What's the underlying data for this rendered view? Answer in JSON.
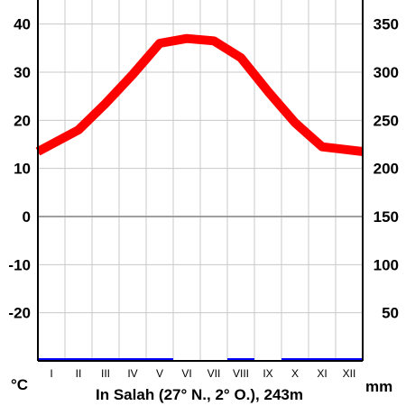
{
  "chart_data": {
    "type": "line",
    "title": "In Salah (27° N., 2° O.), 243m",
    "categories": [
      "I",
      "II",
      "III",
      "IV",
      "V",
      "VI",
      "VII",
      "VIII",
      "IX",
      "X",
      "XI",
      "XII"
    ],
    "series": [
      {
        "name": "",
        "axis": "left",
        "kind": "line",
        "color": "#ff0000",
        "values": [
          13.5,
          18,
          23.5,
          29.5,
          36,
          37,
          36.5,
          33,
          26,
          19.5,
          14.5,
          13.5
        ]
      },
      {
        "name": "",
        "axis": "right",
        "kind": "bar",
        "color": "#0000ff",
        "values": [
          1.5,
          2,
          1,
          0.5,
          0.5,
          0,
          0,
          0.5,
          0,
          1,
          1,
          2
        ]
      }
    ],
    "y_left": {
      "unit": "°C",
      "ylim": [
        -30,
        45
      ],
      "ticks": [
        40,
        30,
        20,
        10,
        0,
        -10,
        -20
      ]
    },
    "y_right": {
      "unit": "mm",
      "ylim": [
        0,
        375
      ],
      "ticks": [
        350,
        300,
        250,
        200,
        150,
        100,
        50
      ]
    },
    "grid": true,
    "zero_line": true
  }
}
